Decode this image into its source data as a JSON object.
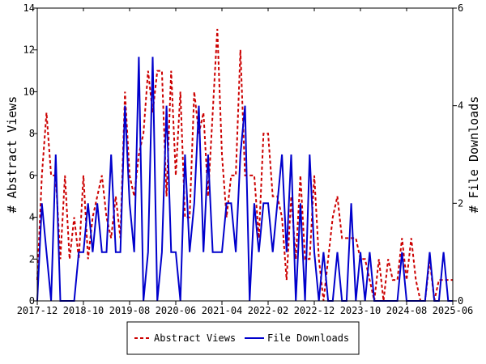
{
  "chart_data": {
    "type": "line",
    "x_ticks": [
      "2017-12",
      "2018-10",
      "2019-08",
      "2020-06",
      "2021-04",
      "2022-02",
      "2022-12",
      "2023-10",
      "2024-08",
      "2025-06"
    ],
    "left_axis": {
      "label": "# Abstract Views",
      "ylim": [
        0,
        14
      ],
      "ticks": [
        "0",
        "2",
        "4",
        "6",
        "8",
        "10",
        "12",
        "14"
      ]
    },
    "right_axis": {
      "label": "# File Downloads",
      "ylim": [
        0,
        6
      ],
      "ticks": [
        "0",
        "2",
        "4",
        "6"
      ]
    },
    "legend_position": "bottom",
    "series": [
      {
        "name": "Abstract Views",
        "axis": "left",
        "color": "#cc0000",
        "style": "dashed",
        "x": [
          "2017-12",
          "2018-01",
          "2018-02",
          "2018-03",
          "2018-04",
          "2018-05",
          "2018-06",
          "2018-07",
          "2018-08",
          "2018-09",
          "2018-10",
          "2018-11",
          "2018-12",
          "2019-01",
          "2019-02",
          "2019-03",
          "2019-04",
          "2019-05",
          "2019-06",
          "2019-07",
          "2019-08",
          "2019-09",
          "2019-10",
          "2019-11",
          "2019-12",
          "2020-01",
          "2020-02",
          "2020-03",
          "2020-04",
          "2020-05",
          "2020-06",
          "2020-07",
          "2020-08",
          "2020-09",
          "2020-10",
          "2020-11",
          "2020-12",
          "2021-01",
          "2021-02",
          "2021-03",
          "2021-04",
          "2021-05",
          "2021-06",
          "2021-07",
          "2021-08",
          "2021-09",
          "2021-10",
          "2021-11",
          "2021-12",
          "2022-01",
          "2022-02",
          "2022-03",
          "2022-04",
          "2022-05",
          "2022-06",
          "2022-07",
          "2022-08",
          "2022-09",
          "2022-10",
          "2022-11",
          "2022-12",
          "2023-01",
          "2023-02",
          "2023-03",
          "2023-04",
          "2023-05",
          "2023-06",
          "2023-07",
          "2023-08",
          "2023-09",
          "2023-10",
          "2023-11",
          "2023-12",
          "2024-01",
          "2024-02",
          "2024-03",
          "2024-04",
          "2024-05",
          "2024-06",
          "2024-07",
          "2024-08",
          "2024-09",
          "2024-10",
          "2024-11",
          "2024-12",
          "2025-01",
          "2025-02",
          "2025-03",
          "2025-04",
          "2025-05",
          "2025-06"
        ],
        "values": [
          1,
          6,
          9,
          6,
          6,
          2,
          6,
          2,
          4,
          2,
          6,
          2,
          4,
          5,
          6,
          4,
          3,
          5,
          3,
          10,
          6,
          5,
          7,
          8,
          11,
          9,
          11,
          11,
          5,
          11,
          6,
          10,
          4,
          4,
          10,
          8,
          9,
          5,
          9,
          13,
          7,
          4,
          6,
          6,
          12,
          6,
          6,
          6,
          3,
          8,
          8,
          5,
          5,
          4,
          1,
          5,
          2,
          6,
          2,
          2,
          6,
          2,
          0,
          2,
          4,
          5,
          3,
          3,
          3,
          3,
          2,
          2,
          1,
          0,
          2,
          0,
          2,
          1,
          1,
          3,
          1,
          3,
          1,
          0,
          0,
          2,
          0,
          1,
          1,
          1,
          1
        ],
        "note": "monthly values; dashed line"
      },
      {
        "name": "File Downloads",
        "axis": "right",
        "color": "#0000cc",
        "style": "solid",
        "x": [
          "2017-12",
          "2018-01",
          "2018-02",
          "2018-03",
          "2018-04",
          "2018-05",
          "2018-06",
          "2018-07",
          "2018-08",
          "2018-09",
          "2018-10",
          "2018-11",
          "2018-12",
          "2019-01",
          "2019-02",
          "2019-03",
          "2019-04",
          "2019-05",
          "2019-06",
          "2019-07",
          "2019-08",
          "2019-09",
          "2019-10",
          "2019-11",
          "2019-12",
          "2020-01",
          "2020-02",
          "2020-03",
          "2020-04",
          "2020-05",
          "2020-06",
          "2020-07",
          "2020-08",
          "2020-09",
          "2020-10",
          "2020-11",
          "2020-12",
          "2021-01",
          "2021-02",
          "2021-03",
          "2021-04",
          "2021-05",
          "2021-06",
          "2021-07",
          "2021-08",
          "2021-09",
          "2021-10",
          "2021-11",
          "2021-12",
          "2022-01",
          "2022-02",
          "2022-03",
          "2022-04",
          "2022-05",
          "2022-06",
          "2022-07",
          "2022-08",
          "2022-09",
          "2022-10",
          "2022-11",
          "2022-12",
          "2023-01",
          "2023-02",
          "2023-03",
          "2023-04",
          "2023-05",
          "2023-06",
          "2023-07",
          "2023-08",
          "2023-09",
          "2023-10",
          "2023-11",
          "2023-12",
          "2024-01",
          "2024-02",
          "2024-03",
          "2024-04",
          "2024-05",
          "2024-06",
          "2024-07",
          "2024-08",
          "2024-09",
          "2024-10",
          "2024-11",
          "2024-12",
          "2025-01",
          "2025-02",
          "2025-03",
          "2025-04",
          "2025-05",
          "2025-06"
        ],
        "values": [
          0,
          2,
          1,
          0,
          3,
          0,
          0,
          0,
          0,
          1,
          1,
          2,
          1,
          2,
          1,
          1,
          3,
          1,
          1,
          4,
          2,
          1,
          5,
          0,
          1,
          5,
          0,
          1,
          4,
          1,
          1,
          0,
          3,
          1,
          2,
          4,
          1,
          3,
          1,
          1,
          1,
          2,
          2,
          1,
          3,
          4,
          0,
          2,
          1,
          2,
          2,
          1,
          2,
          3,
          1,
          3,
          0,
          2,
          0,
          3,
          1,
          0,
          1,
          0,
          0,
          1,
          0,
          0,
          2,
          0,
          1,
          0,
          1,
          0,
          0,
          0,
          0,
          0,
          0,
          1,
          0,
          0,
          0,
          0,
          0,
          1,
          0,
          0,
          1,
          0,
          0
        ],
        "note": "monthly values; solid line"
      }
    ]
  }
}
